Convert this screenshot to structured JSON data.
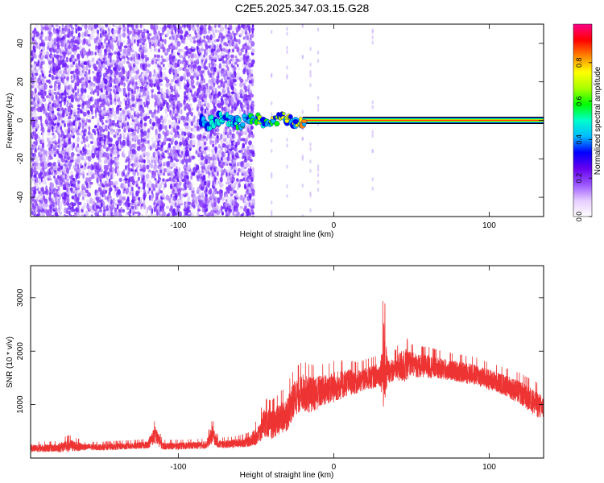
{
  "figure": {
    "title": "C2E5.2025.347.03.15.G28"
  },
  "chart_data": [
    {
      "type": "heatmap",
      "title": "C2E5.2025.347.03.15.G28",
      "xlabel": "Height of straight line (km)",
      "ylabel": "Frequency (Hz)",
      "xlim": [
        -195,
        135
      ],
      "ylim": [
        -50,
        50
      ],
      "x_ticks": [
        -100,
        0,
        100
      ],
      "x_tick_labels": [
        "-100",
        "0",
        "100"
      ],
      "y_ticks": [
        -40,
        -20,
        0,
        20,
        40
      ],
      "y_tick_labels": [
        "-40",
        "-20",
        "0",
        "20",
        "40"
      ],
      "colorbar": {
        "label": "Normalized spectral amplitude",
        "range": [
          0.0,
          1.0
        ],
        "ticks": [
          0.0,
          0.2,
          0.4,
          0.6,
          0.8
        ],
        "tick_labels": [
          "0.0",
          "0.2",
          "0.4",
          "0.6",
          "0.8"
        ],
        "colormap": [
          "#ffffff",
          "#e6ccff",
          "#9955ff",
          "#6600ee",
          "#0000ff",
          "#00bbff",
          "#00ffcc",
          "#00ff00",
          "#aaff00",
          "#ffff00",
          "#ff8800",
          "#ff0000",
          "#ff0088"
        ]
      },
      "features": {
        "noise_region_x": [
          -195,
          -52
        ],
        "carrier_frequency_hz": 0,
        "carrier_x": [
          -85,
          135
        ],
        "carrier_peak_amplitude": 0.9
      },
      "grid": false
    },
    {
      "type": "line",
      "xlabel": "Height of straight line (km)",
      "ylabel": "SNR (10 * v/v)",
      "xlim": [
        -195,
        135
      ],
      "ylim": [
        0,
        3600
      ],
      "x_ticks": [
        -100,
        0,
        100
      ],
      "x_tick_labels": [
        "-100",
        "0",
        "100"
      ],
      "y_ticks": [
        1000,
        2000,
        3000
      ],
      "y_tick_labels": [
        "1000",
        "2000",
        "3000"
      ],
      "series": [
        {
          "color": "#ee3333",
          "envelope": {
            "x": [
              -195,
              -180,
              -170,
              -160,
              -150,
              -140,
              -130,
              -120,
              -115,
              -110,
              -100,
              -90,
              -82,
              -78,
              -74,
              -65,
              -55,
              -48,
              -45,
              -40,
              -35,
              -30,
              -25,
              -20,
              -15,
              -10,
              -5,
              0,
              5,
              10,
              15,
              20,
              25,
              30,
              32,
              35,
              40,
              45,
              50,
              55,
              60,
              70,
              80,
              90,
              100,
              110,
              120,
              130,
              135
            ],
            "base": [
              180,
              180,
              220,
              200,
              200,
              210,
              220,
              240,
              420,
              220,
              220,
              230,
              240,
              430,
              250,
              260,
              300,
              420,
              650,
              600,
              700,
              800,
              1100,
              1200,
              1150,
              1200,
              1250,
              1300,
              1350,
              1400,
              1400,
              1450,
              1500,
              1550,
              1700,
              1600,
              1650,
              1700,
              1750,
              1700,
              1700,
              1650,
              1600,
              1550,
              1450,
              1350,
              1200,
              1000,
              900
            ],
            "amplitude": [
              150,
              150,
              250,
              120,
              120,
              130,
              130,
              140,
              350,
              140,
              140,
              140,
              150,
              350,
              150,
              160,
              200,
              400,
              550,
              550,
              600,
              650,
              700,
              700,
              700,
              650,
              600,
              600,
              550,
              500,
              450,
              450,
              450,
              450,
              1800,
              450,
              450,
              700,
              450,
              450,
              450,
              400,
              400,
              400,
              400,
              400,
              450,
              500,
              450
            ]
          }
        }
      ],
      "grid": false
    }
  ],
  "colors": {
    "axis": "#000000",
    "line": "#ee3333",
    "noise": "#7a2bff",
    "background": "#ffffff"
  }
}
